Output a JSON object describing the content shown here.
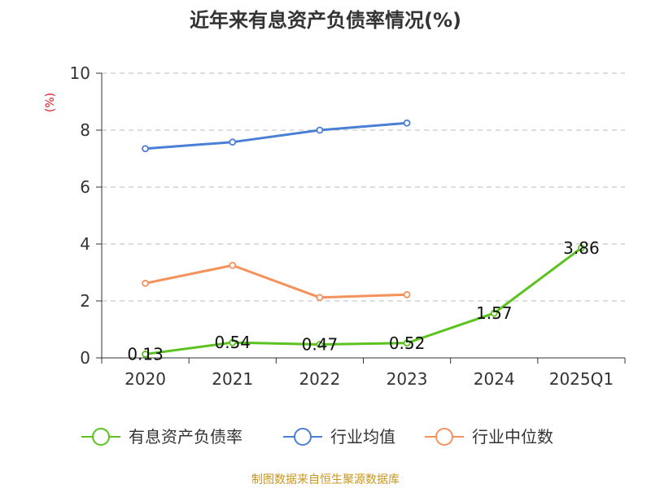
{
  "chart_data": {
    "type": "line",
    "title": "近年来有息资产负债率情况(%)",
    "ylabel": "(%)",
    "xlabel": "",
    "categories": [
      "2020",
      "2021",
      "2022",
      "2023",
      "2024",
      "2025Q1"
    ],
    "ylim": [
      0,
      10
    ],
    "yticks": [
      "0",
      "2",
      "4",
      "6",
      "8",
      "10"
    ],
    "grid": true,
    "legend_position": "bottom",
    "series": [
      {
        "name": "有息资产负债率",
        "color": "#5bc21e",
        "values": [
          0.13,
          0.54,
          0.47,
          0.52,
          1.57,
          3.86
        ],
        "labels": [
          "0.13",
          "0.54",
          "0.47",
          "0.52",
          "1.57",
          "3.86"
        ]
      },
      {
        "name": "行业均值",
        "color": "#4a7fd6",
        "values": [
          7.35,
          7.58,
          8.0,
          8.25,
          null,
          null
        ]
      },
      {
        "name": "行业中位数",
        "color": "#f5915a",
        "values": [
          2.62,
          3.25,
          2.12,
          2.22,
          null,
          null
        ]
      }
    ],
    "source": "制图数据来自恒生聚源数据库"
  }
}
